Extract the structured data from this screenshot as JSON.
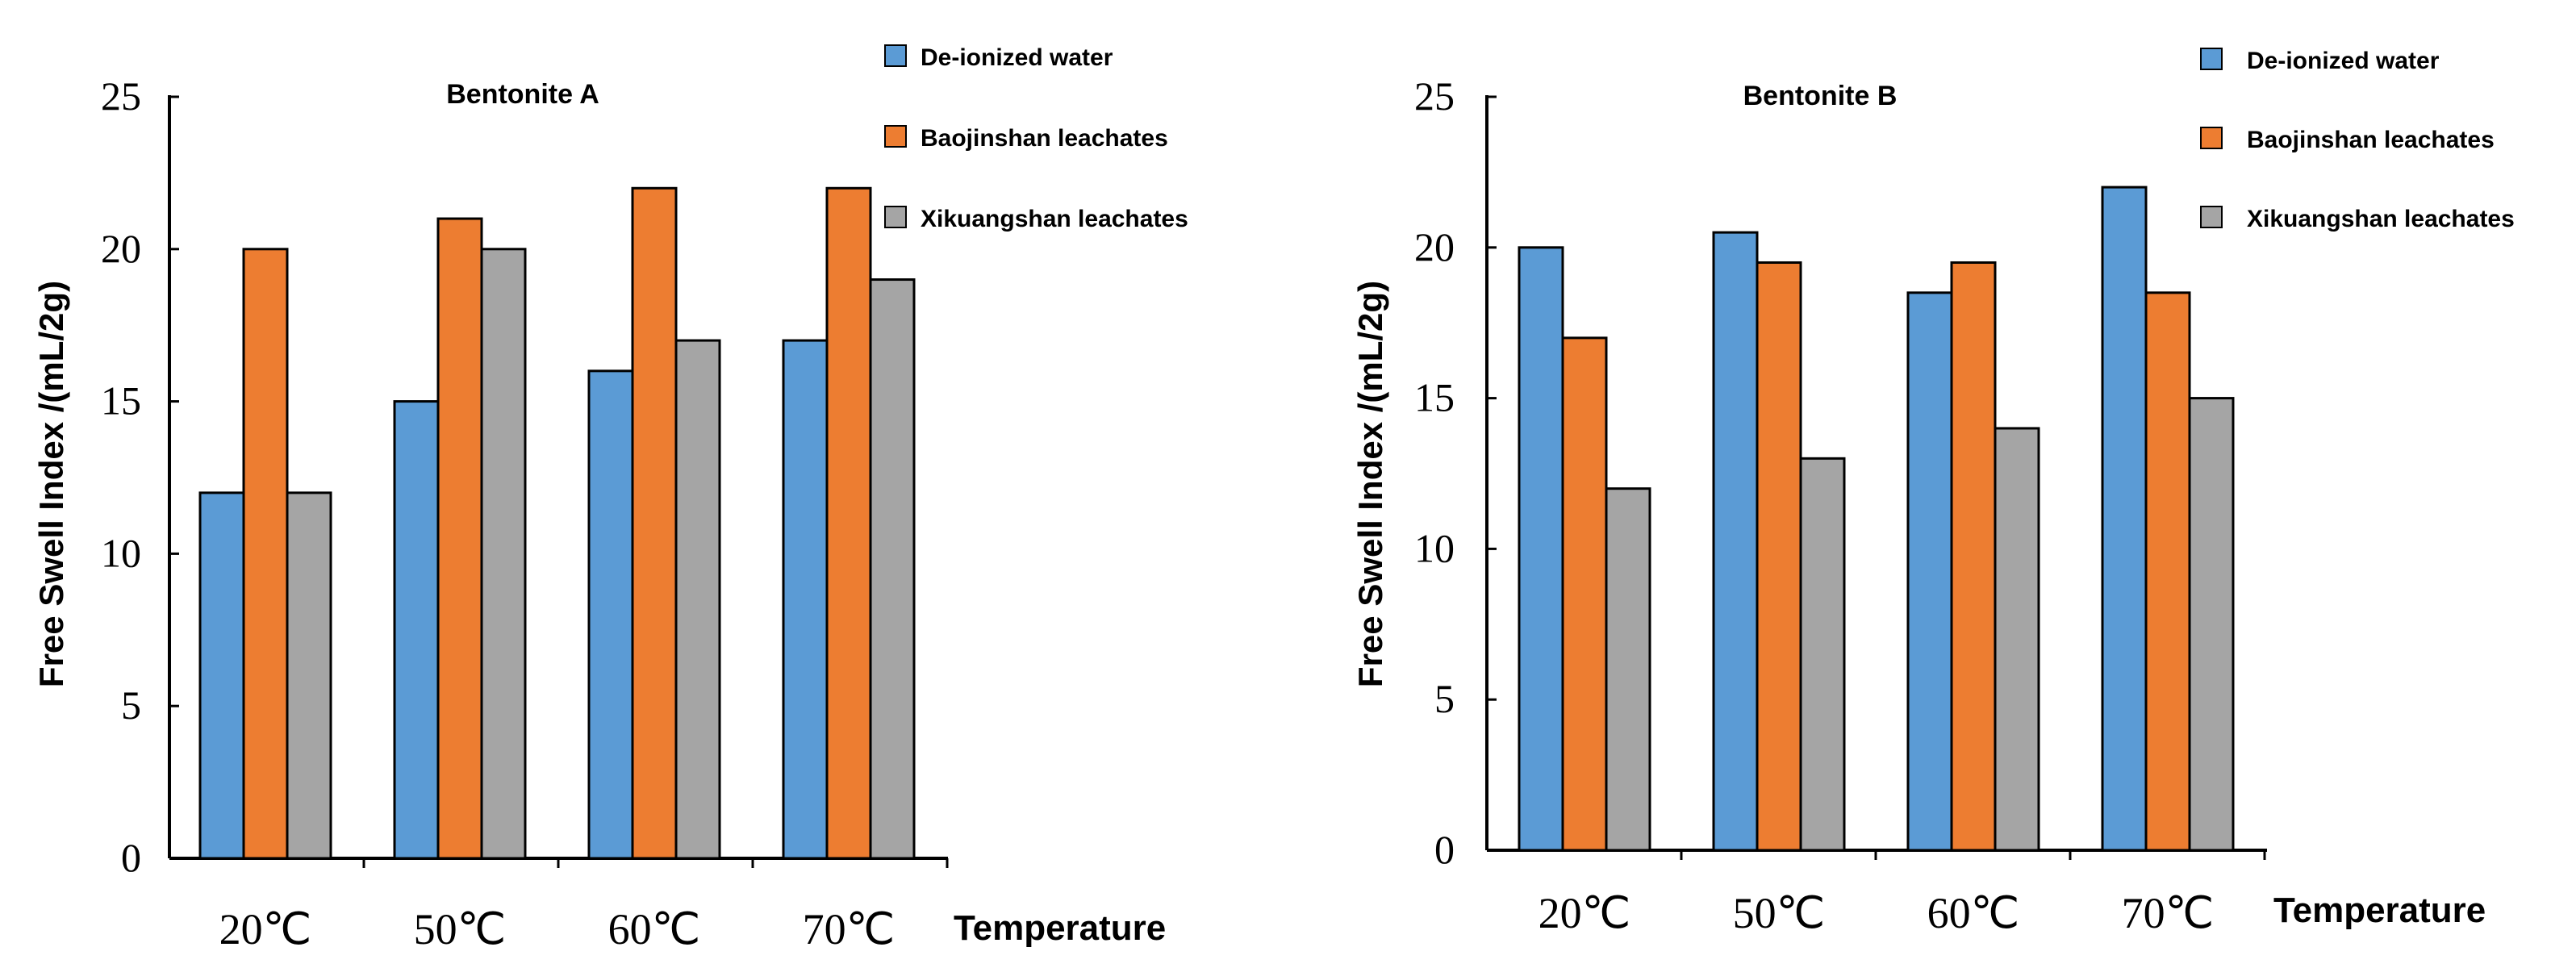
{
  "chart_data": [
    {
      "type": "bar",
      "title": "Bentonite A",
      "xlabel": "Temperature",
      "ylabel": "Free Swell Index /(mL/2g)",
      "categories": [
        "20℃",
        "50℃",
        "60℃",
        "70℃"
      ],
      "ylim": [
        0,
        25
      ],
      "yticks": [
        "0",
        "5",
        "10",
        "15",
        "20",
        "25"
      ],
      "grid": false,
      "legend_position": "top-right",
      "series": [
        {
          "name": "De-ionized water",
          "color": "#5b9bd5",
          "values": [
            12,
            15,
            16,
            17
          ]
        },
        {
          "name": "Baojinshan leachates",
          "color": "#ed7d31",
          "values": [
            20,
            21,
            22,
            22
          ]
        },
        {
          "name": "Xikuangshan leachates",
          "color": "#a5a5a5",
          "values": [
            12,
            20,
            17,
            19
          ]
        }
      ]
    },
    {
      "type": "bar",
      "title": "Bentonite B",
      "xlabel": "Temperature",
      "ylabel": "Free Swell Index /(mL/2g)",
      "categories": [
        "20℃",
        "50℃",
        "60℃",
        "70℃"
      ],
      "ylim": [
        0,
        25
      ],
      "yticks": [
        "0",
        "5",
        "10",
        "15",
        "20",
        "25"
      ],
      "grid": false,
      "legend_position": "top-right",
      "series": [
        {
          "name": "De-ionized water",
          "color": "#5b9bd5",
          "values": [
            20,
            20.5,
            18.5,
            22
          ]
        },
        {
          "name": "Baojinshan leachates",
          "color": "#ed7d31",
          "values": [
            17,
            19.5,
            19.5,
            18.5
          ]
        },
        {
          "name": "Xikuangshan leachates",
          "color": "#a5a5a5",
          "values": [
            12,
            13,
            14,
            15
          ]
        }
      ]
    }
  ]
}
